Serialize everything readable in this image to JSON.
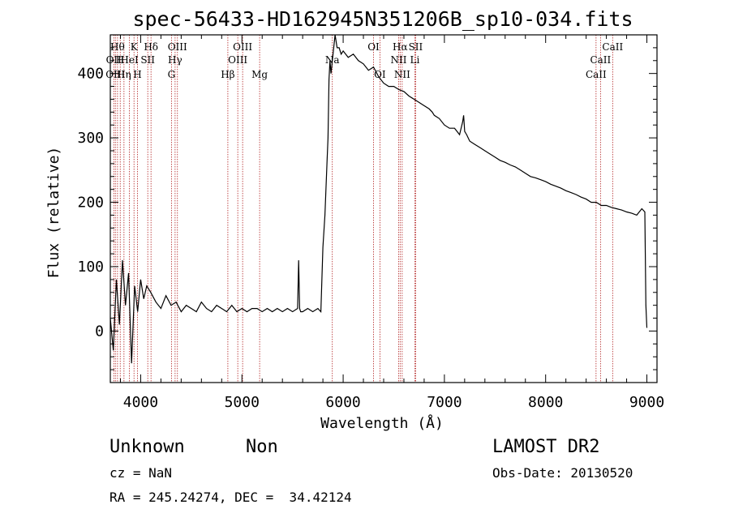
{
  "chart_data": {
    "type": "line",
    "title": "spec-56433-HD162945N351206B_sp10-034.fits",
    "xlabel": "Wavelength (Å)",
    "ylabel": "Flux (relative)",
    "xlim": [
      3700,
      9100
    ],
    "ylim": [
      -80,
      460
    ],
    "xticks": [
      4000,
      5000,
      6000,
      7000,
      8000,
      9000
    ],
    "yticks": [
      0,
      100,
      200,
      300,
      400
    ],
    "line_color": "#000000",
    "marker_color": "#b22222",
    "series": [
      {
        "x": [
          3700,
          3730,
          3760,
          3790,
          3820,
          3850,
          3880,
          3910,
          3940,
          3970,
          4000,
          4030,
          4060,
          4100,
          4150,
          4200,
          4250,
          4300,
          4350,
          4400,
          4450,
          4500,
          4550,
          4600,
          4650,
          4700,
          4750,
          4800,
          4850,
          4900,
          4950,
          5000,
          5050,
          5100,
          5150,
          5200,
          5250,
          5300,
          5350,
          5400,
          5450,
          5500,
          5550,
          5560,
          5570,
          5580,
          5600,
          5650,
          5700,
          5750,
          5780,
          5800,
          5820,
          5840,
          5850,
          5860,
          5870,
          5880,
          5900,
          5920,
          5940,
          5960,
          5980,
          6000,
          6050,
          6100,
          6150,
          6200,
          6250,
          6300,
          6350,
          6400,
          6450,
          6500,
          6550,
          6600,
          6650,
          6700,
          6750,
          6800,
          6850,
          6880,
          6900,
          6950,
          7000,
          7050,
          7100,
          7150,
          7180,
          7190,
          7200,
          7220,
          7250,
          7300,
          7350,
          7400,
          7450,
          7500,
          7550,
          7600,
          7650,
          7700,
          7750,
          7800,
          7850,
          7900,
          7950,
          8000,
          8050,
          8100,
          8150,
          8200,
          8250,
          8300,
          8350,
          8400,
          8450,
          8500,
          8550,
          8600,
          8650,
          8700,
          8750,
          8800,
          8850,
          8900,
          8950,
          8980,
          8990,
          9000
        ],
        "y": [
          20,
          -30,
          80,
          10,
          110,
          40,
          90,
          -50,
          70,
          30,
          80,
          50,
          70,
          60,
          45,
          35,
          55,
          40,
          45,
          30,
          40,
          35,
          30,
          45,
          35,
          30,
          40,
          35,
          30,
          40,
          30,
          35,
          30,
          35,
          35,
          30,
          35,
          30,
          35,
          30,
          35,
          30,
          35,
          110,
          35,
          30,
          30,
          35,
          30,
          35,
          30,
          130,
          180,
          260,
          300,
          390,
          420,
          400,
          430,
          460,
          440,
          440,
          430,
          435,
          425,
          430,
          420,
          415,
          405,
          410,
          395,
          385,
          380,
          380,
          375,
          372,
          365,
          360,
          355,
          350,
          345,
          340,
          335,
          330,
          320,
          315,
          315,
          305,
          325,
          335,
          310,
          305,
          295,
          290,
          285,
          280,
          275,
          270,
          265,
          262,
          258,
          255,
          250,
          245,
          240,
          238,
          235,
          232,
          228,
          225,
          222,
          218,
          215,
          212,
          208,
          205,
          200,
          200,
          195,
          195,
          192,
          190,
          188,
          185,
          183,
          180,
          190,
          185,
          40,
          5
        ]
      }
    ],
    "lines": [
      {
        "wl": 3734,
        "label": "OII",
        "row": 2
      },
      {
        "wl": 3750,
        "label": "OIII",
        "row": 3
      },
      {
        "wl": 3771,
        "label": "Hθ",
        "row": 1
      },
      {
        "wl": 3798,
        "label": "H",
        "row": 2
      },
      {
        "wl": 3835,
        "label": "Hη",
        "row": 3
      },
      {
        "wl": 3889,
        "label": "HeI",
        "row": 2
      },
      {
        "wl": 3934,
        "label": "K",
        "row": 1
      },
      {
        "wl": 3968,
        "label": "H",
        "row": 3
      },
      {
        "wl": 4070,
        "label": "SII",
        "row": 2
      },
      {
        "wl": 4102,
        "label": "Hδ",
        "row": 1
      },
      {
        "wl": 4304,
        "label": "G",
        "row": 3
      },
      {
        "wl": 4340,
        "label": "Hγ",
        "row": 2
      },
      {
        "wl": 4363,
        "label": "OIII",
        "row": 1
      },
      {
        "wl": 4861,
        "label": "Hβ",
        "row": 3
      },
      {
        "wl": 4959,
        "label": "OIII",
        "row": 2
      },
      {
        "wl": 5007,
        "label": "OIII",
        "row": 1
      },
      {
        "wl": 5175,
        "label": "Mg",
        "row": 3
      },
      {
        "wl": 5893,
        "label": "Na",
        "row": 2
      },
      {
        "wl": 6300,
        "label": "OI",
        "row": 1
      },
      {
        "wl": 6363,
        "label": "OI",
        "row": 3
      },
      {
        "wl": 6548,
        "label": "NII",
        "row": 2
      },
      {
        "wl": 6563,
        "label": "Hα",
        "row": 1
      },
      {
        "wl": 6583,
        "label": "NII",
        "row": 3
      },
      {
        "wl": 6708,
        "label": "Li",
        "row": 2
      },
      {
        "wl": 6716,
        "label": "SII",
        "row": 1
      },
      {
        "wl": 8498,
        "label": "CaII",
        "row": 3
      },
      {
        "wl": 8542,
        "label": "CaII",
        "row": 2
      },
      {
        "wl": 8662,
        "label": "CaII",
        "row": 1
      }
    ]
  },
  "info": {
    "class": "Unknown",
    "subclass": "Non",
    "survey": "LAMOST DR2",
    "cz": "cz = NaN",
    "obsdate": "Obs-Date: 20130520",
    "radec": "RA = 245.24274, DEC =  34.42124"
  }
}
